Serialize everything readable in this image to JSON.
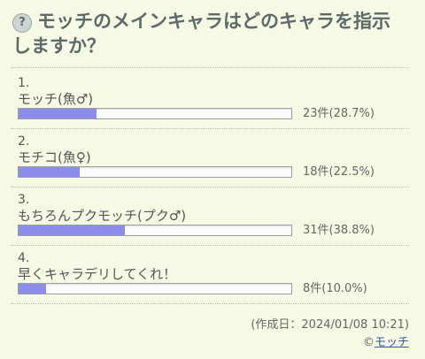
{
  "title": "モッチのメインキャラはどのキャラを指示しますか？",
  "options": [
    {
      "num": "1.",
      "label": "モッチ(魚♂)",
      "result": "23件(28.7%)",
      "percent": 28.7
    },
    {
      "num": "2.",
      "label": "モチコ(魚♀)",
      "result": "18件(22.5%)",
      "percent": 22.5
    },
    {
      "num": "3.",
      "label": "もちろんプクモッチ(プク♂)",
      "result": "31件(38.8%)",
      "percent": 38.8
    },
    {
      "num": "4.",
      "label": "早くキャラデリしてくれ！",
      "result": "8件(10.0%)",
      "percent": 10.0
    }
  ],
  "footer": {
    "created": "(作成日：2024/01/08 10:21)",
    "copyright_symbol": "©",
    "author": "モッチ"
  },
  "colors": {
    "background": "#f6f9e3",
    "bar_fill": "#8c8cea",
    "link": "#3355aa"
  }
}
